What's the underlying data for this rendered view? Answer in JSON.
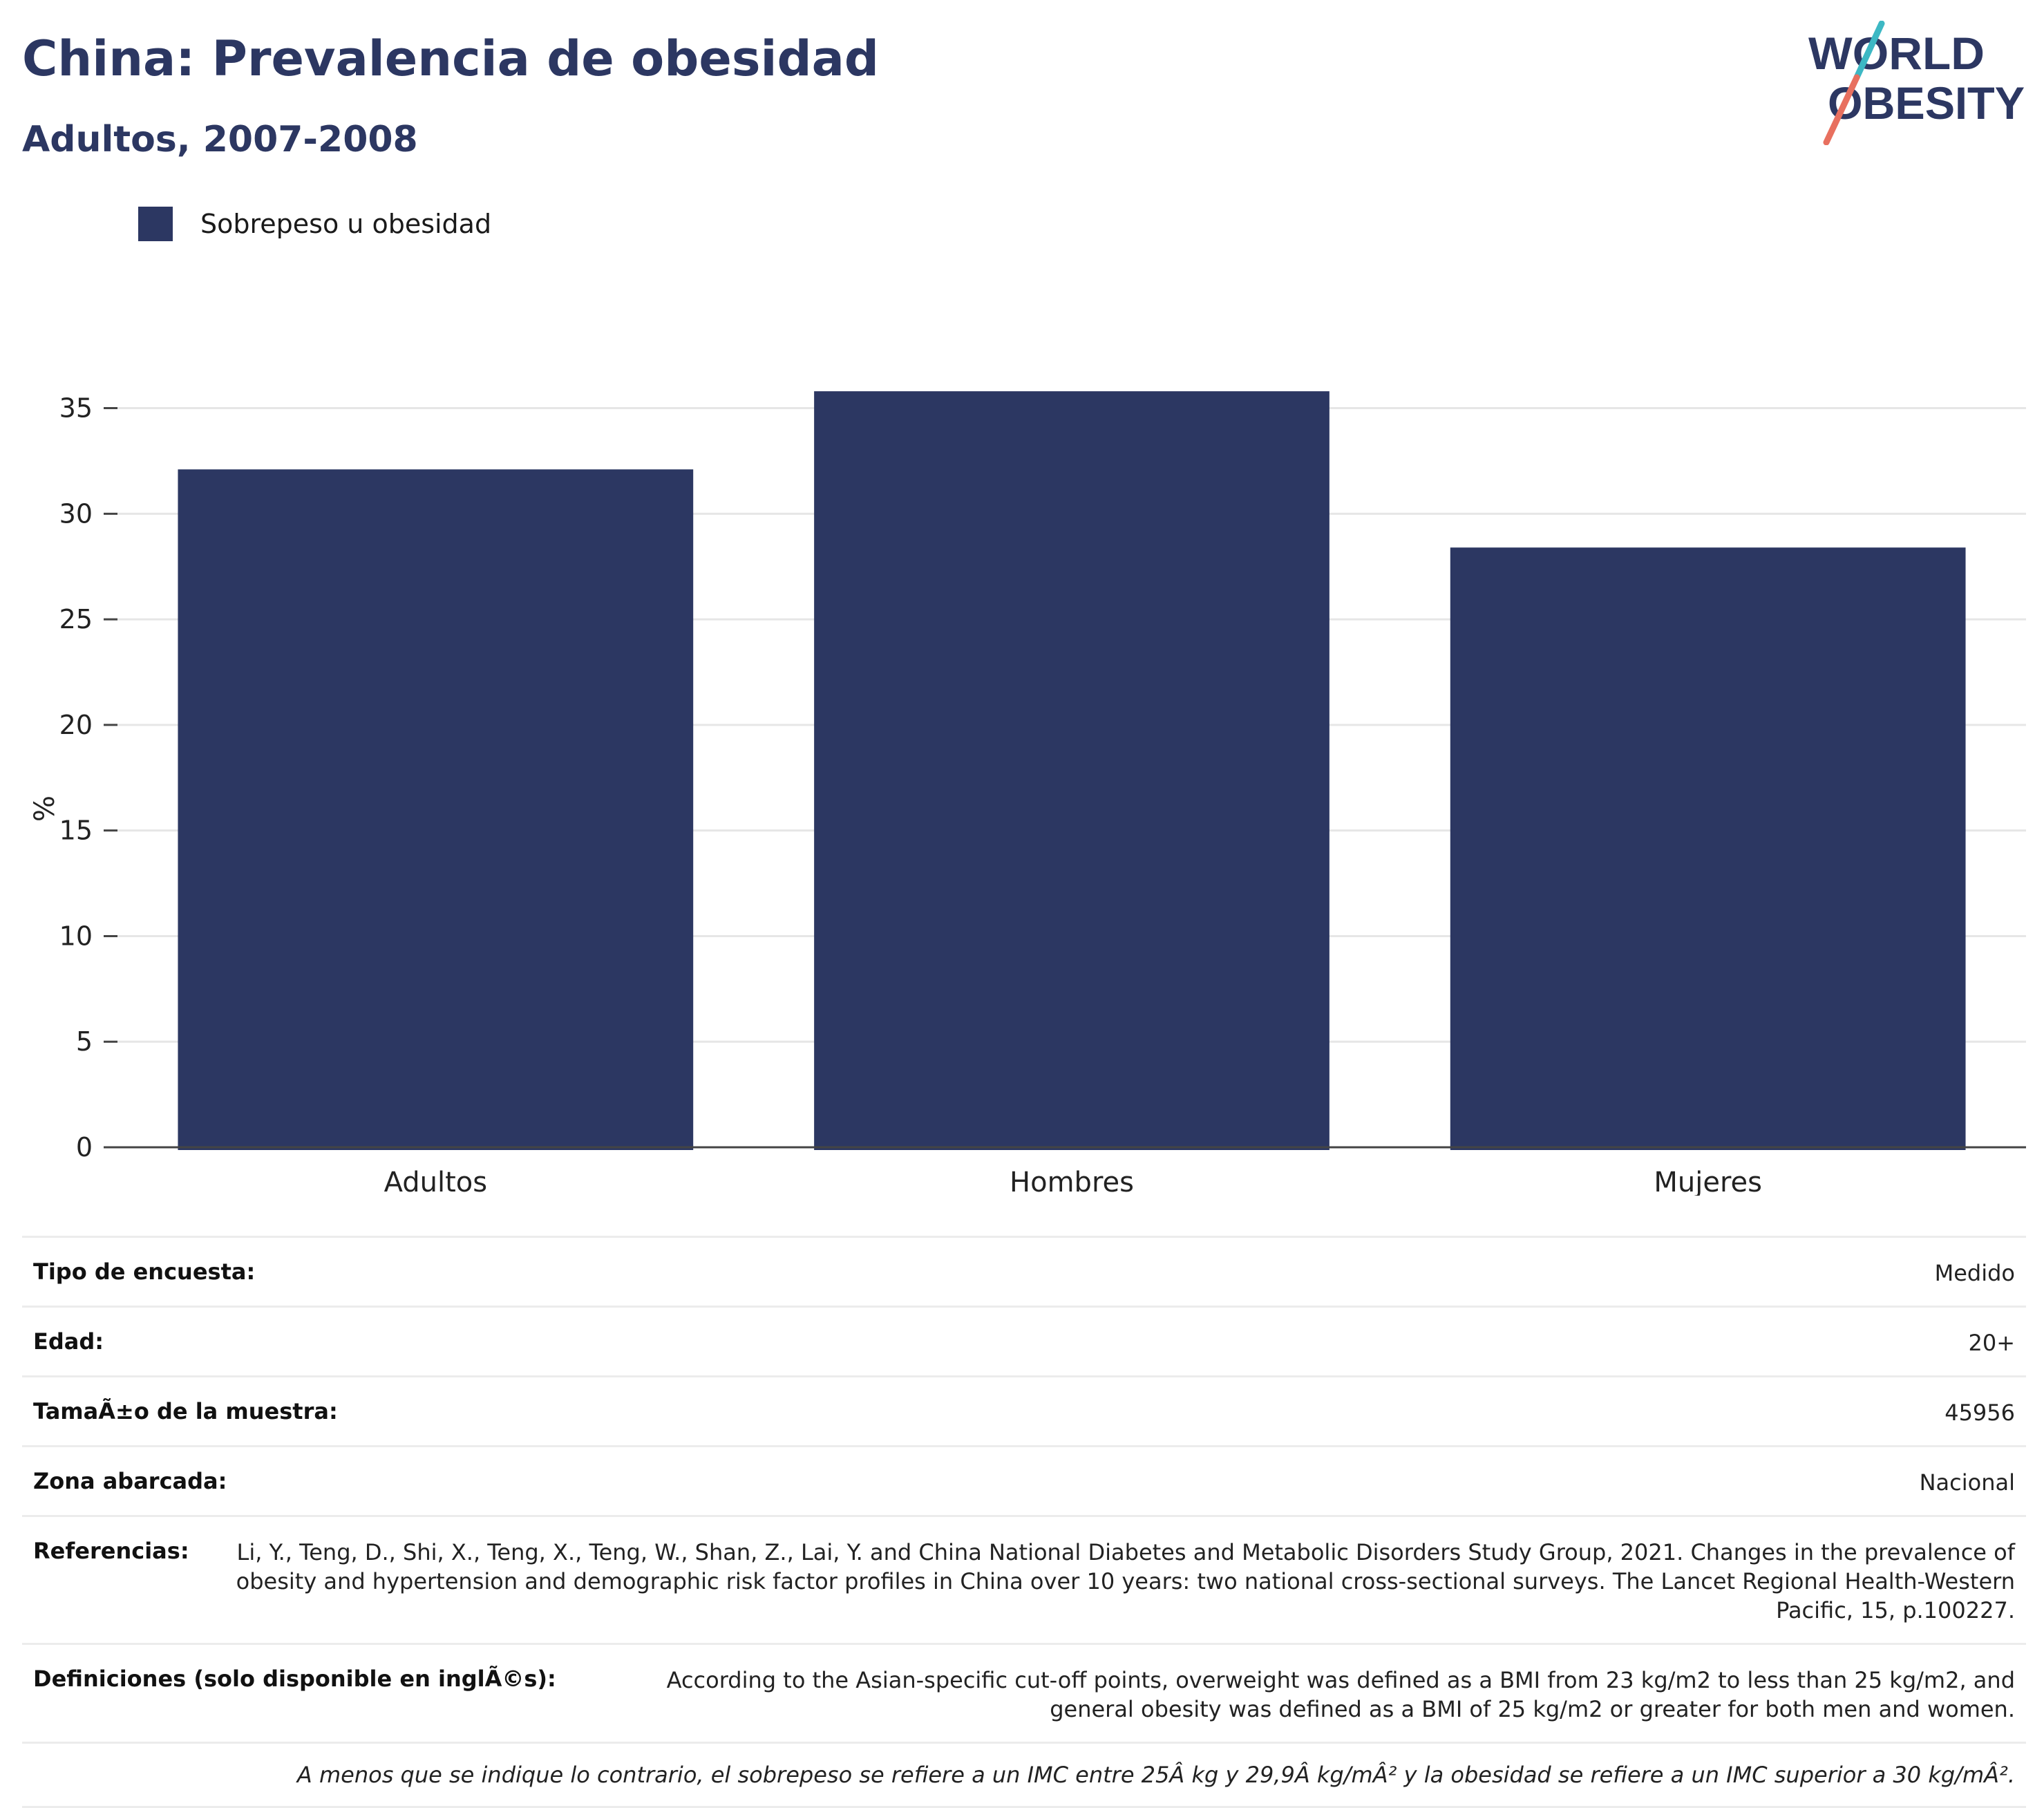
{
  "header": {
    "title": "China: Prevalencia de obesidad",
    "subtitle": "Adultos, 2007-2008"
  },
  "logo": {
    "line1": "WORLD",
    "line2": "OBESITY",
    "colors": {
      "text": "#2c3762",
      "slash_top": "#3db8c4",
      "slash_bottom": "#e8705f"
    }
  },
  "legend": {
    "label": "Sobrepeso u obesidad",
    "color": "#2c3762"
  },
  "chart_data": {
    "type": "bar",
    "categories": [
      "Adultos",
      "Hombres",
      "Mujeres"
    ],
    "series": [
      {
        "name": "Sobrepeso u obesidad",
        "values": [
          32.1,
          35.8,
          28.4
        ],
        "color": "#2c3762"
      }
    ],
    "ylabel": "%",
    "xlabel": "",
    "ylim": [
      0,
      36
    ],
    "yticks": [
      0,
      5,
      10,
      15,
      20,
      25,
      30,
      35
    ],
    "grid": true,
    "legend_position": "top-left"
  },
  "info": {
    "rows": [
      {
        "key": "Tipo de encuesta:",
        "value": "Medido"
      },
      {
        "key": "Edad:",
        "value": "20+"
      },
      {
        "key": "TamaÃ±o de la muestra:",
        "value": "45956"
      },
      {
        "key": "Zona abarcada:",
        "value": "Nacional"
      },
      {
        "key": "Referencias:",
        "value": "Li, Y., Teng, D., Shi, X., Teng, X., Teng, W., Shan, Z., Lai, Y. and China National Diabetes and Metabolic Disorders Study Group, 2021. Changes in the prevalence of obesity and hypertension and demographic risk factor profiles in China over 10 years: two national cross-sectional surveys. The Lancet Regional Health-Western Pacific, 15, p.100227."
      },
      {
        "key": "Definiciones (solo disponible en inglÃ©s):",
        "value": "According to the Asian-specific cut-off points, overweight was defined as a BMI from 23 kg/m2 to less than 25 kg/m2, and general obesity was defined as a BMI of 25 kg/m2 or greater for both men and women."
      }
    ],
    "note": "A menos que se indique lo contrario, el sobrepeso se refiere a un IMC entre 25Â kg y 29,9Â kg/mÂ² y la obesidad se refiere a un IMC superior a 30 kg/mÂ²."
  }
}
